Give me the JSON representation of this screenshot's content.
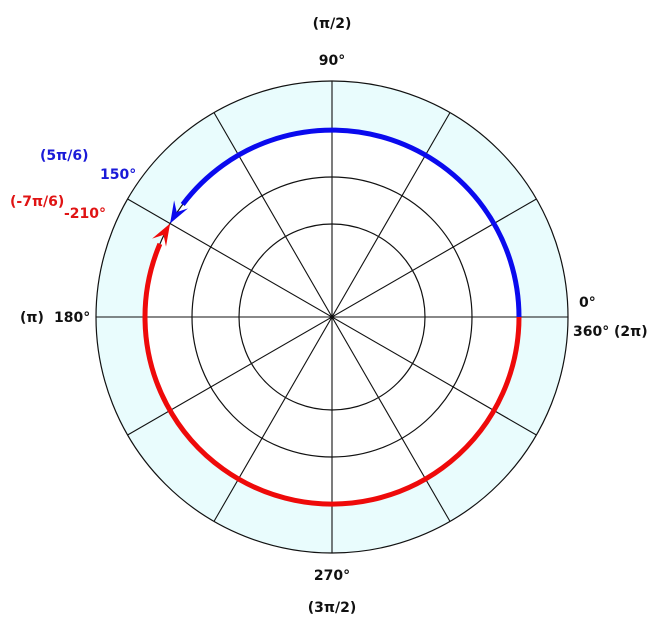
{
  "labels": {
    "top_radian": "(π/2)",
    "top_degree": "90°",
    "bottom_degree": "270°",
    "bottom_radian": "(3π/2)",
    "left_radian": "(π)",
    "left_degree": "180°",
    "right_zero": "0°",
    "right_360": "360°",
    "right_radian": "(2π)",
    "positive_radian": "(5π/6)",
    "positive_degree": "150°",
    "negative_radian": "(-7π/6)",
    "negative_degree": "-210°"
  },
  "colors": {
    "background": "#ffffff",
    "sector_fill": "#e9fcfd",
    "grid_line": "#111111",
    "positive_arc": "#0a0aee",
    "negative_arc": "#ee0a0a"
  },
  "icons": {
    "positive_arrow": "arrowhead-icon",
    "negative_arrow": "arrowhead-icon"
  },
  "angles": {
    "radial_line_step_deg": 30,
    "shaded_band": "outer ring",
    "positive_rotation_deg": 150,
    "negative_rotation_deg": -210,
    "terminal_angle_deg": 150
  }
}
